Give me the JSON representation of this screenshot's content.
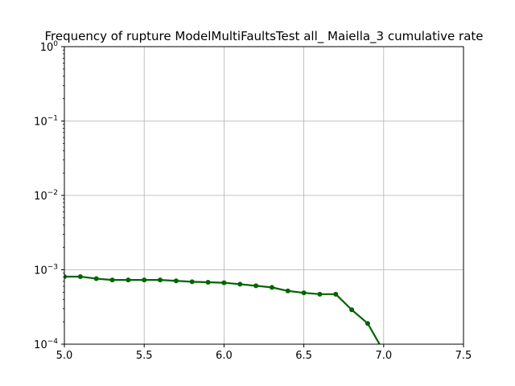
{
  "chart_data": {
    "type": "line",
    "title": "Frequency of rupture ModelMultiFaultsTest all_ Maiella_3 cumulative rate",
    "xlabel": "",
    "ylabel": "",
    "xlim": [
      5.0,
      7.5
    ],
    "ylim": [
      0.0001,
      1
    ],
    "yscale": "log",
    "grid": true,
    "x_ticks": [
      "5.0",
      "5.5",
      "6.0",
      "6.5",
      "7.0",
      "7.5"
    ],
    "y_ticks": [
      {
        "base": "10",
        "exp": "0"
      },
      {
        "base": "10",
        "exp": "−1"
      },
      {
        "base": "10",
        "exp": "−2"
      },
      {
        "base": "10",
        "exp": "−3"
      },
      {
        "base": "10",
        "exp": "−4"
      }
    ],
    "series": [
      {
        "color": "#006400",
        "x": [
          5.0,
          5.1,
          5.2,
          5.3,
          5.4,
          5.5,
          5.6,
          5.7,
          5.8,
          5.9,
          6.0,
          6.1,
          6.2,
          6.3,
          6.4,
          6.5,
          6.6,
          6.7,
          6.8,
          6.9,
          7.0
        ],
        "y": [
          0.00081,
          0.00081,
          0.00076,
          0.00073,
          0.00073,
          0.00073,
          0.00073,
          0.00071,
          0.00069,
          0.00068,
          0.00067,
          0.00064,
          0.00061,
          0.00058,
          0.00052,
          0.00049,
          0.00047,
          0.00047,
          0.00029,
          0.00019,
          8e-05
        ]
      }
    ]
  }
}
